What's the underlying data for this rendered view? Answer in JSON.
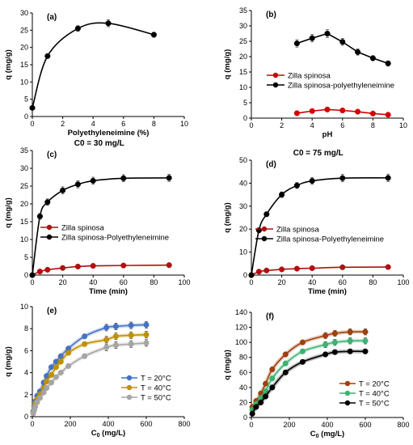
{
  "chart_data": [
    {
      "id": "a",
      "type": "line",
      "panel_label": "(a)",
      "annotation": "",
      "xlabel": "Polyethyleneimine (%)",
      "ylabel": "q (mg/g)",
      "xlim": [
        0,
        10
      ],
      "ylim": [
        0,
        30
      ],
      "xticks": [
        0,
        2,
        4,
        6,
        8,
        10
      ],
      "yticks": [
        0,
        5,
        10,
        15,
        20,
        25,
        30
      ],
      "grid": false,
      "legend": "none",
      "series": [
        {
          "name": "",
          "color": "#000000",
          "smooth": true,
          "x": [
            0,
            1,
            3,
            5,
            8
          ],
          "y": [
            2.5,
            17.5,
            25.5,
            27.0,
            23.7
          ],
          "err": [
            0,
            0.4,
            0.8,
            1.0,
            0.7
          ]
        }
      ]
    },
    {
      "id": "b",
      "type": "line",
      "panel_label": "(b)",
      "annotation": "",
      "xlabel": "pH",
      "ylabel": "q (mg/g)",
      "xlim": [
        0,
        10
      ],
      "ylim": [
        0,
        35
      ],
      "xticks": [
        0,
        2,
        4,
        6,
        8,
        10
      ],
      "yticks": [
        0,
        5,
        10,
        15,
        20,
        25,
        30,
        35
      ],
      "grid": false,
      "legend": "center-left",
      "series": [
        {
          "name": "Zilla spinosa",
          "color": "#d40000",
          "smooth": false,
          "x": [
            3,
            4,
            5,
            6,
            7,
            8,
            9
          ],
          "y": [
            1.6,
            2.3,
            2.8,
            2.5,
            2.1,
            1.5,
            1.1
          ],
          "err": [
            0.2,
            0.2,
            0.2,
            0.2,
            0.2,
            0.2,
            0.2
          ]
        },
        {
          "name": "Zilla spinosa-polyethyleneimine",
          "color": "#000000",
          "smooth": false,
          "x": [
            3,
            4,
            5,
            6,
            7,
            8,
            9
          ],
          "y": [
            24.3,
            26.0,
            27.5,
            24.8,
            21.5,
            19.5,
            17.8
          ],
          "err": [
            1.2,
            1.2,
            1.3,
            1.1,
            1.0,
            0.8,
            0.8
          ]
        }
      ]
    },
    {
      "id": "c",
      "type": "line",
      "panel_label": "(c)",
      "annotation": "C0 = 30 mg/L",
      "xlabel": "Time (min)",
      "ylabel": "q (mg/g)",
      "xlim": [
        0,
        100
      ],
      "ylim": [
        0,
        35
      ],
      "xticks": [
        0,
        20,
        40,
        60,
        80,
        100
      ],
      "yticks": [
        0,
        5,
        10,
        15,
        20,
        25,
        30,
        35
      ],
      "grid": false,
      "legend": "center-left",
      "series": [
        {
          "name": "Zilla spinosa",
          "color": "#b01010",
          "smooth": true,
          "x": [
            0,
            5,
            10,
            20,
            30,
            40,
            60,
            90
          ],
          "y": [
            0,
            1.0,
            1.5,
            2.0,
            2.4,
            2.6,
            2.7,
            2.8
          ],
          "err": [
            0,
            0.2,
            0.2,
            0.2,
            0.2,
            0.2,
            0.2,
            0.2
          ]
        },
        {
          "name": "Zilla spinosa-Polyethyleneimine",
          "color": "#000000",
          "smooth": true,
          "x": [
            0,
            5,
            10,
            20,
            30,
            40,
            60,
            90
          ],
          "y": [
            0,
            16.5,
            20.5,
            23.8,
            25.5,
            26.5,
            27.2,
            27.3
          ],
          "err": [
            0,
            0.8,
            0.9,
            1.0,
            1.0,
            1.0,
            1.0,
            1.0
          ]
        }
      ]
    },
    {
      "id": "d",
      "type": "line",
      "panel_label": "(d)",
      "annotation": "C0 = 75 mg/L",
      "xlabel": "Time (min)",
      "ylabel": "q (mg/g)",
      "xlim": [
        0,
        100
      ],
      "ylim": [
        0,
        50
      ],
      "xticks": [
        0,
        20,
        40,
        60,
        80,
        100
      ],
      "yticks": [
        0,
        10,
        20,
        30,
        40,
        50
      ],
      "grid": false,
      "legend": "center-left",
      "series": [
        {
          "name": "Zilla spinosa",
          "color": "#b01010",
          "smooth": true,
          "x": [
            0,
            5,
            10,
            20,
            30,
            40,
            60,
            90
          ],
          "y": [
            0,
            1.5,
            2.0,
            2.5,
            2.8,
            3.0,
            3.4,
            3.5
          ],
          "err": [
            0,
            0.2,
            0.2,
            0.2,
            0.2,
            0.2,
            0.2,
            0.2
          ]
        },
        {
          "name": "Zilla spinosa-Polyethyleneimine",
          "color": "#000000",
          "smooth": true,
          "x": [
            0,
            5,
            10,
            20,
            30,
            40,
            60,
            90
          ],
          "y": [
            0,
            19.5,
            26.5,
            35.0,
            39.0,
            41.0,
            42.2,
            42.3
          ],
          "err": [
            0,
            1.0,
            1.0,
            1.2,
            1.3,
            1.5,
            1.6,
            1.6
          ]
        }
      ]
    },
    {
      "id": "e",
      "type": "line",
      "panel_label": "(e)",
      "annotation": "",
      "xlabel": "C0 (mg/L)",
      "ylabel": "q (mg/g)",
      "xlim": [
        0,
        800
      ],
      "ylim": [
        0,
        10
      ],
      "xticks": [
        0,
        200,
        400,
        600,
        800
      ],
      "yticks": [
        0,
        2,
        4,
        6,
        8,
        10
      ],
      "grid": false,
      "legend": "bottom-right",
      "series": [
        {
          "name": "T = 20°C",
          "color": "#4472c4",
          "smooth": true,
          "x": [
            5,
            10,
            15,
            25,
            40,
            60,
            75,
            100,
            125,
            150,
            190,
            275,
            390,
            440,
            520,
            600
          ],
          "y": [
            0.5,
            1.0,
            1.4,
            1.9,
            2.3,
            3.1,
            3.7,
            4.5,
            5.0,
            5.5,
            6.2,
            7.3,
            8.1,
            8.2,
            8.3,
            8.35
          ],
          "err": [
            0.1,
            0.1,
            0.1,
            0.1,
            0.1,
            0.1,
            0.1,
            0.1,
            0.1,
            0.1,
            0.15,
            0.2,
            0.3,
            0.3,
            0.3,
            0.3
          ]
        },
        {
          "name": "T = 40°C",
          "color": "#bf9000",
          "smooth": true,
          "x": [
            5,
            10,
            15,
            25,
            40,
            60,
            75,
            100,
            125,
            150,
            190,
            275,
            390,
            440,
            520,
            600
          ],
          "y": [
            0.4,
            0.8,
            1.2,
            1.6,
            2.0,
            2.6,
            3.2,
            3.8,
            4.5,
            5.0,
            5.8,
            6.6,
            7.0,
            7.3,
            7.4,
            7.45
          ],
          "err": [
            0.1,
            0.1,
            0.1,
            0.1,
            0.1,
            0.1,
            0.1,
            0.1,
            0.1,
            0.1,
            0.15,
            0.2,
            0.3,
            0.3,
            0.3,
            0.3
          ]
        },
        {
          "name": "T = 50°C",
          "color": "#a5a5a5",
          "smooth": true,
          "x": [
            5,
            10,
            15,
            25,
            40,
            60,
            75,
            100,
            125,
            150,
            190,
            275,
            390,
            440,
            520,
            600
          ],
          "y": [
            0.3,
            0.6,
            0.9,
            1.3,
            1.7,
            2.2,
            2.6,
            3.1,
            3.6,
            4.0,
            4.6,
            5.5,
            6.3,
            6.5,
            6.6,
            6.7
          ],
          "err": [
            0.1,
            0.1,
            0.1,
            0.1,
            0.1,
            0.1,
            0.1,
            0.1,
            0.1,
            0.1,
            0.15,
            0.2,
            0.3,
            0.3,
            0.3,
            0.3
          ]
        }
      ]
    },
    {
      "id": "f",
      "type": "line",
      "panel_label": "(f)",
      "annotation": "",
      "xlabel": "C0 (mg/L)",
      "ylabel": "q (mg/g)",
      "xlim": [
        0,
        800
      ],
      "ylim": [
        0,
        140
      ],
      "xticks": [
        0,
        200,
        400,
        600,
        800
      ],
      "yticks": [
        0,
        20,
        40,
        60,
        80,
        100,
        120,
        140
      ],
      "grid": false,
      "legend": "bottom-right",
      "series": [
        {
          "name": "T = 20°C",
          "color": "#a0400a",
          "smooth": true,
          "x": [
            5,
            25,
            50,
            75,
            110,
            180,
            270,
            390,
            440,
            520,
            600
          ],
          "y": [
            14,
            22,
            32,
            45,
            64,
            84,
            100,
            109,
            112,
            114,
            114
          ],
          "err": [
            2,
            2,
            2,
            2,
            3,
            3,
            3,
            4,
            4,
            4,
            4
          ]
        },
        {
          "name": "T = 40°C",
          "color": "#3cb371",
          "smooth": true,
          "x": [
            5,
            25,
            50,
            75,
            110,
            180,
            270,
            390,
            440,
            520,
            600
          ],
          "y": [
            10,
            18,
            26,
            35,
            52,
            72,
            88,
            97,
            100,
            102,
            102
          ],
          "err": [
            2,
            2,
            2,
            2,
            3,
            3,
            3,
            4,
            4,
            4,
            4
          ]
        },
        {
          "name": "T = 50°C",
          "color": "#000000",
          "smooth": true,
          "x": [
            5,
            25,
            50,
            75,
            110,
            180,
            270,
            390,
            440,
            520,
            600
          ],
          "y": [
            5,
            14,
            20,
            28,
            40,
            60,
            74,
            84,
            87,
            88,
            88
          ],
          "err": [
            2,
            2,
            2,
            2,
            3,
            3,
            3,
            3,
            3,
            3,
            3
          ]
        }
      ]
    }
  ]
}
